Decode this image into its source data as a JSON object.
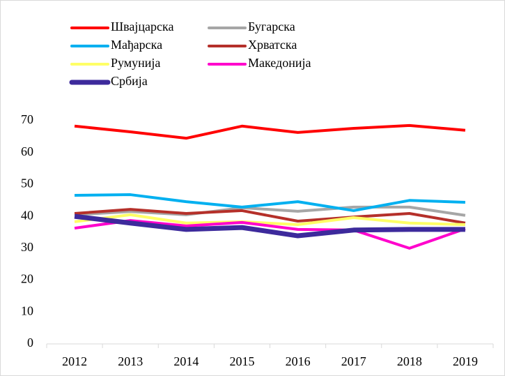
{
  "chart_data": {
    "type": "line",
    "x": [
      2012,
      2013,
      2014,
      2015,
      2016,
      2017,
      2018,
      2019
    ],
    "ylim": [
      0,
      70
    ],
    "yticks": [
      0,
      10,
      20,
      30,
      40,
      50,
      60,
      70
    ],
    "grid": false,
    "series": [
      {
        "name": "Швајцарска",
        "color": "#ff0000",
        "values": [
          68.3,
          66.5,
          64.5,
          68.3,
          66.3,
          67.6,
          68.5,
          67.0
        ]
      },
      {
        "name": "Бугарска",
        "color": "#a6a6a6",
        "values": [
          40.5,
          41.5,
          40.5,
          42.7,
          41.6,
          42.9,
          42.9,
          40.3
        ]
      },
      {
        "name": "Мађарска",
        "color": "#00b0f0",
        "values": [
          46.6,
          46.8,
          44.6,
          42.9,
          44.6,
          41.8,
          45.0,
          44.4
        ]
      },
      {
        "name": "Хрватска",
        "color": "#b5302a",
        "values": [
          40.9,
          42.2,
          40.9,
          41.8,
          38.5,
          39.8,
          40.9,
          37.9
        ]
      },
      {
        "name": "Румунија",
        "color": "#ffff66",
        "values": [
          38.3,
          40.5,
          37.9,
          38.3,
          37.4,
          39.6,
          37.9,
          37.4
        ]
      },
      {
        "name": "Македонија",
        "color": "#ff00cc",
        "values": [
          36.3,
          38.7,
          37.0,
          38.1,
          35.9,
          35.7,
          30.0,
          36.1
        ]
      },
      {
        "name": "Србија",
        "color": "#3d2a9c",
        "values": [
          40.0,
          37.9,
          35.9,
          36.5,
          33.9,
          35.7,
          35.9,
          35.9
        ]
      }
    ]
  }
}
